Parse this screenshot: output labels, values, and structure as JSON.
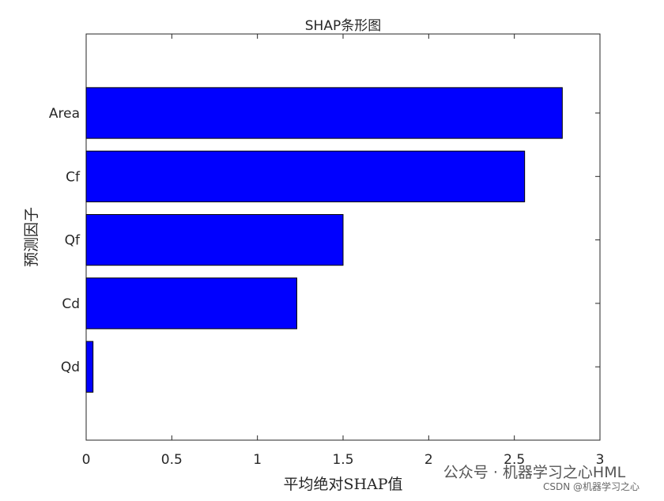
{
  "chart_data": {
    "type": "barh",
    "title": "SHAP条形图",
    "x_label": "平均绝对SHAP值",
    "y_label": "预测因子",
    "categories": [
      "Area",
      "Cf",
      "Qf",
      "Cd",
      "Qd"
    ],
    "values": [
      2.78,
      2.56,
      1.5,
      1.23,
      0.04
    ],
    "color": "#0000ff",
    "xlim": [
      0,
      3
    ],
    "xticks": [
      0,
      0.5,
      1,
      1.5,
      2,
      2.5,
      3
    ],
    "annotations": [
      "公众号 · 机器学习之心HML",
      "CSDN @机器学习之心"
    ]
  }
}
